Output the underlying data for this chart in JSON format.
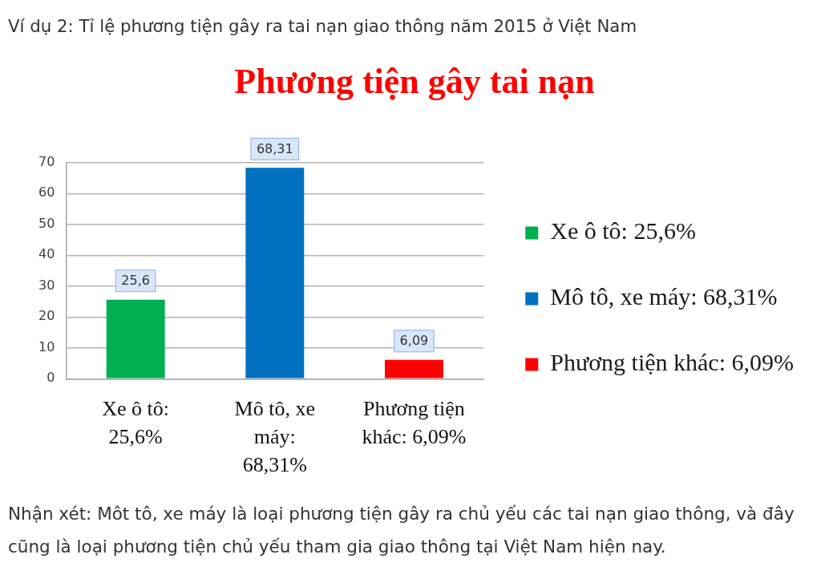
{
  "chart_data": {
    "type": "bar",
    "title": "Phương tiện gây tai nạn",
    "categories": [
      "Xe ô tô: 25,6%",
      "Mô tô, xe máy: 68,31%",
      "Phương tiện khác: 6,09%"
    ],
    "series": [
      {
        "name": "Xe ô tô: 25,6%",
        "color": "#00b050",
        "values": [
          25.6,
          null,
          null
        ],
        "value_labels": [
          "25,6",
          null,
          null
        ]
      },
      {
        "name": "Mô tô, xe máy: 68,31%",
        "color": "#0070c0",
        "values": [
          null,
          68.31,
          null
        ],
        "value_labels": [
          null,
          "68,31",
          null
        ]
      },
      {
        "name": "Phương tiện khác: 6,09%",
        "color": "#ff0000",
        "values": [
          null,
          null,
          6.09
        ],
        "value_labels": [
          null,
          null,
          "6,09"
        ]
      }
    ],
    "ylim": [
      0,
      70
    ],
    "yticks": [
      0,
      10,
      20,
      30,
      40,
      50,
      60,
      70
    ],
    "grid": "y",
    "legend": "right",
    "annotations": [
      "Ví dụ 2: Tỉ lệ phương tiện gây ra tai nạn giao thông năm 2015 ở Việt Nam",
      "Nhận xét: Môt tô, xe máy là loại phương tiện gây ra chủ yếu các tai nạn giao thông, và đây cũng là loại phương tiện chủ yếu tham gia giao thông tại Việt Nam hiện nay."
    ]
  }
}
